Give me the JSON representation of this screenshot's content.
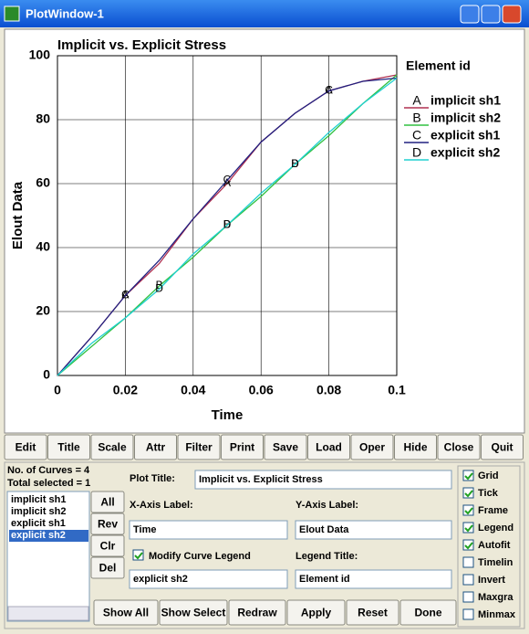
{
  "window": {
    "title": "PlotWindow-1"
  },
  "chart_data": {
    "type": "line",
    "title": "Implicit vs. Explicit Stress",
    "x_label": "Time",
    "y_label": "Elout Data",
    "legend_title": "Element id",
    "legend": "right",
    "grid": true,
    "x": [
      0,
      0.01,
      0.02,
      0.03,
      0.04,
      0.05,
      0.06,
      0.07,
      0.08,
      0.09,
      0.1
    ],
    "xlim": [
      0,
      0.1
    ],
    "xticks": [
      0,
      0.02,
      0.04,
      0.06,
      0.08,
      0.1
    ],
    "ylim": [
      0,
      100
    ],
    "yticks": [
      0,
      20,
      40,
      60,
      80,
      100
    ],
    "series": [
      {
        "name": "implicit sh1",
        "label": "A",
        "color": "#b03050",
        "values": [
          0,
          12,
          25,
          35,
          49,
          60,
          73,
          82,
          89,
          92,
          94
        ]
      },
      {
        "name": "implicit sh2",
        "label": "B",
        "color": "#30c040",
        "values": [
          0,
          9,
          18,
          28,
          37,
          47,
          56,
          66,
          75,
          85,
          94
        ]
      },
      {
        "name": "explicit sh1",
        "label": "C",
        "color": "#202080",
        "values": [
          0,
          12,
          25,
          36,
          49,
          61,
          73,
          82,
          89,
          92,
          93
        ]
      },
      {
        "name": "explicit sh2",
        "label": "D",
        "color": "#20d0d0",
        "values": [
          0,
          10,
          18,
          27,
          38,
          47,
          57,
          66,
          76,
          85,
          93
        ]
      }
    ]
  },
  "toolbar": [
    "Edit",
    "Title",
    "Scale",
    "Attr",
    "Filter",
    "Print",
    "Save",
    "Load",
    "Oper",
    "Hide",
    "Close",
    "Quit"
  ],
  "panel": {
    "curve_count": "No. of Curves = 4",
    "total_selected": "Total selected = 1",
    "curves": [
      "implicit sh1",
      "implicit sh2",
      "explicit sh1",
      "explicit sh2"
    ],
    "selected": 3,
    "list_buttons": [
      "All",
      "Rev",
      "Clr",
      "Del"
    ],
    "plot_title_label": "Plot Title:",
    "plot_title_value": "Implicit vs. Explicit Stress",
    "x_axis_label": "X-Axis Label:",
    "x_axis_value": "Time",
    "y_axis_label": "Y-Axis Label:",
    "y_axis_value": "Elout Data",
    "modify_legend": {
      "label": "Modify Curve Legend",
      "checked": true
    },
    "legend_value": "explicit sh2",
    "legend_title_label": "Legend Title:",
    "legend_title_value": "Element id",
    "options": [
      {
        "label": "Grid",
        "checked": true
      },
      {
        "label": "Tick",
        "checked": true
      },
      {
        "label": "Frame",
        "checked": true
      },
      {
        "label": "Legend",
        "checked": true
      },
      {
        "label": "Autofit",
        "checked": true
      },
      {
        "label": "Timelin",
        "checked": false
      },
      {
        "label": "Invert",
        "checked": false
      },
      {
        "label": "Maxgra",
        "checked": false
      },
      {
        "label": "Minmax",
        "checked": false
      }
    ],
    "actions": [
      "Show All",
      "Show Select",
      "Redraw",
      "Apply",
      "Reset",
      "Done"
    ]
  }
}
